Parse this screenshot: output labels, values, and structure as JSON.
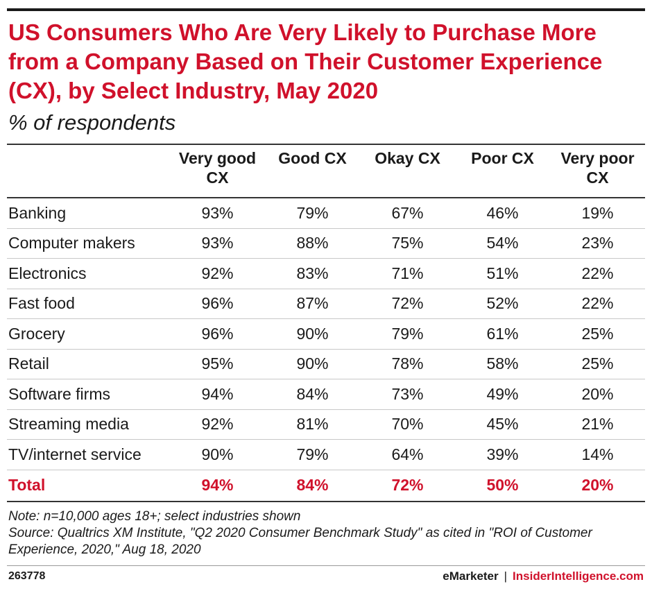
{
  "title": "US Consumers Who Are Very Likely to Purchase More from a Company Based on Their Customer Experience (CX), by Select Industry, May 2020",
  "subtitle": "% of respondents",
  "colors": {
    "accent": "#d0112b",
    "text": "#1a1a1a"
  },
  "chart_data": {
    "type": "table",
    "title": "US Consumers Who Are Very Likely to Purchase More from a Company Based on Their Customer Experience (CX), by Select Industry, May 2020",
    "subtitle": "% of respondents",
    "columns": [
      "Very good CX",
      "Good CX",
      "Okay CX",
      "Poor CX",
      "Very poor CX"
    ],
    "rows": [
      {
        "label": "Banking",
        "values": [
          "93%",
          "79%",
          "67%",
          "46%",
          "19%"
        ]
      },
      {
        "label": "Computer makers",
        "values": [
          "93%",
          "88%",
          "75%",
          "54%",
          "23%"
        ]
      },
      {
        "label": "Electronics",
        "values": [
          "92%",
          "83%",
          "71%",
          "51%",
          "22%"
        ]
      },
      {
        "label": "Fast food",
        "values": [
          "96%",
          "87%",
          "72%",
          "52%",
          "22%"
        ]
      },
      {
        "label": "Grocery",
        "values": [
          "96%",
          "90%",
          "79%",
          "61%",
          "25%"
        ]
      },
      {
        "label": "Retail",
        "values": [
          "95%",
          "90%",
          "78%",
          "58%",
          "25%"
        ]
      },
      {
        "label": "Software firms",
        "values": [
          "94%",
          "84%",
          "73%",
          "49%",
          "20%"
        ]
      },
      {
        "label": "Streaming media",
        "values": [
          "92%",
          "81%",
          "70%",
          "45%",
          "21%"
        ]
      },
      {
        "label": "TV/internet service",
        "values": [
          "90%",
          "79%",
          "64%",
          "39%",
          "14%"
        ]
      }
    ],
    "total": {
      "label": "Total",
      "values": [
        "94%",
        "84%",
        "72%",
        "50%",
        "20%"
      ]
    }
  },
  "notes": {
    "note": "Note: n=10,000 ages 18+; select industries shown",
    "source": "Source: Qualtrics XM Institute, \"Q2 2020 Consumer Benchmark Study\" as cited in \"ROI of Customer Experience, 2020,\" Aug 18, 2020"
  },
  "footer": {
    "chart_id": "263778",
    "brand_left": "eMarketer",
    "separator": "|",
    "brand_right": "InsiderIntelligence.com"
  }
}
